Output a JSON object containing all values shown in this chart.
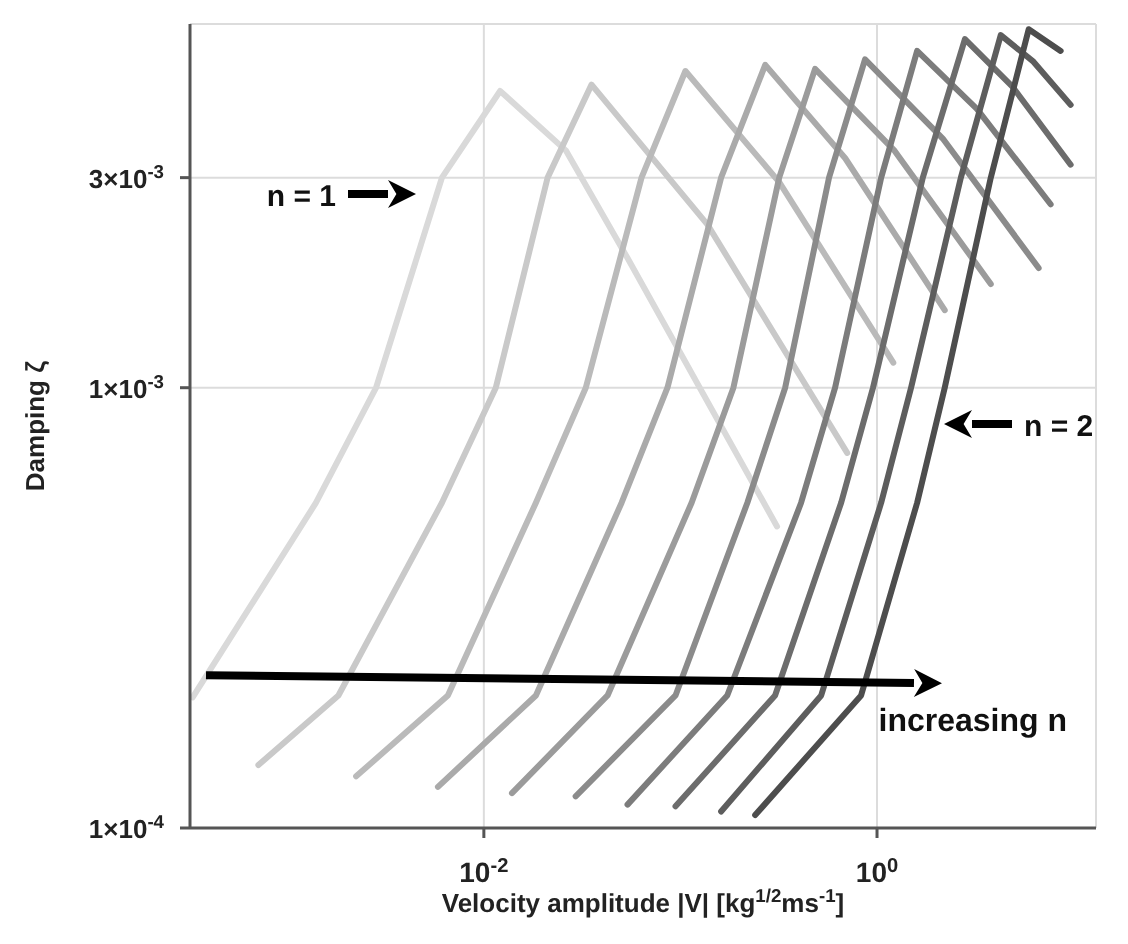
{
  "chart_data": {
    "type": "line",
    "xlabel": "Velocity amplitude |V| [kg$^{1/2}$ms$^{-1}$]",
    "ylabel": "Damping ζ",
    "log": "xy",
    "grid": true,
    "marker": "none",
    "line_style": "solid",
    "xlim": [
      0.00032,
      13
    ],
    "ylim": [
      0.0001,
      0.0067
    ],
    "xticks": [
      {
        "value": 0.01,
        "label": "10$^{-2}$"
      },
      {
        "value": 1,
        "label": "10$^{0}$"
      }
    ],
    "yticks": [
      {
        "value": 0.0001,
        "label": "1×10$^{-4}$"
      },
      {
        "value": 0.001,
        "label": "1×10$^{-3}$"
      },
      {
        "value": 0.003,
        "label": "3×10$^{-3}$"
      }
    ],
    "series": [
      {
        "color": "#d9d9d9",
        "x": [
          0.00033,
          0.0014,
          0.00283,
          0.00612,
          0.0121,
          0.0261,
          0.0538,
          0.31
        ],
        "values": [
          0.000198,
          0.000548,
          0.001,
          0.003,
          0.00472,
          0.00346,
          0.00197,
          0.000484
        ]
      },
      {
        "color": "#c9c9c9",
        "x": [
          0.000713,
          0.00182,
          0.00612,
          0.0115,
          0.0211,
          0.0353,
          0.137,
          0.705
        ],
        "values": [
          0.000139,
          0.0002,
          0.000548,
          0.001,
          0.003,
          0.00488,
          0.00235,
          0.000711
        ]
      },
      {
        "color": "#bababa",
        "x": [
          0.00224,
          0.00656,
          0.0184,
          0.033,
          0.0634,
          0.106,
          0.318,
          1.21
        ],
        "values": [
          0.000131,
          0.0002,
          0.000548,
          0.001,
          0.003,
          0.00524,
          0.00293,
          0.00114
        ]
      },
      {
        "color": "#aaaaaa",
        "x": [
          0.00584,
          0.0184,
          0.0502,
          0.0859,
          0.161,
          0.27,
          0.689,
          2.21
        ],
        "values": [
          0.000124,
          0.0002,
          0.000548,
          0.001,
          0.003,
          0.00541,
          0.00332,
          0.0015
        ]
      },
      {
        "color": "#9b9b9b",
        "x": [
          0.0139,
          0.0426,
          0.114,
          0.186,
          0.318,
          0.484,
          1.23,
          3.79
        ],
        "values": [
          0.00012,
          0.0002,
          0.000548,
          0.001,
          0.003,
          0.0053,
          0.00345,
          0.00172
        ]
      },
      {
        "color": "#8b8b8b",
        "x": [
          0.0293,
          0.0944,
          0.219,
          0.341,
          0.57,
          0.869,
          2.16,
          6.64
        ],
        "values": [
          0.000118,
          0.0002,
          0.000548,
          0.001,
          0.003,
          0.00557,
          0.00368,
          0.00187
        ]
      },
      {
        "color": "#7c7c7c",
        "x": [
          0.0538,
          0.173,
          0.411,
          0.612,
          1.05,
          1.6,
          3.22,
          7.64
        ],
        "values": [
          0.000113,
          0.0002,
          0.000548,
          0.001,
          0.003,
          0.00582,
          0.0043,
          0.00261
        ]
      },
      {
        "color": "#6c6c6c",
        "x": [
          0.0944,
          0.303,
          0.657,
          0.954,
          1.71,
          2.8,
          4.9,
          9.66
        ],
        "values": [
          0.000112,
          0.0002,
          0.000548,
          0.001,
          0.003,
          0.00619,
          0.00482,
          0.00321
        ]
      },
      {
        "color": "#5d5d5d",
        "x": [
          0.161,
          0.52,
          1.05,
          1.49,
          2.67,
          4.26,
          6.2,
          9.66
        ],
        "values": [
          0.000109,
          0.0002,
          0.000548,
          0.001,
          0.003,
          0.00632,
          0.00552,
          0.00439
        ]
      },
      {
        "color": "#4d4d4d",
        "x": [
          0.24,
          0.83,
          1.6,
          2.21,
          3.79,
          5.91,
          8.59
        ],
        "values": [
          0.000107,
          0.0002,
          0.000548,
          0.001,
          0.003,
          0.00652,
          0.00582
        ]
      }
    ],
    "annotations": [
      "n = 1",
      "n = 2",
      "increasing n"
    ]
  }
}
